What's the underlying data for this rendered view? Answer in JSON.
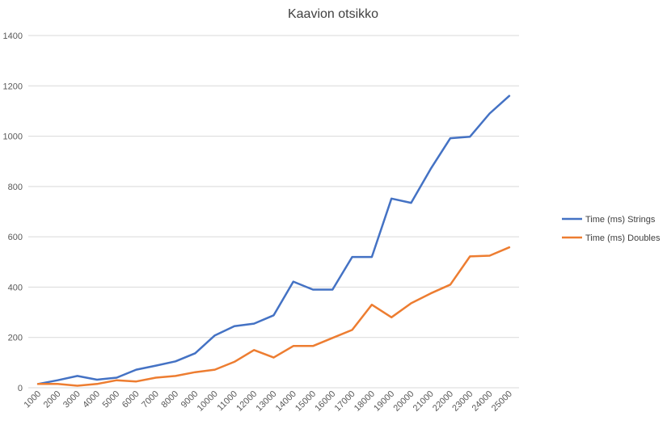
{
  "chart_data": {
    "type": "line",
    "title": "Kaavion otsikko",
    "xlabel": "",
    "ylabel": "",
    "categories": [
      "1000",
      "2000",
      "3000",
      "4000",
      "5000",
      "6000",
      "7000",
      "8000",
      "9000",
      "10000",
      "11000",
      "12000",
      "13000",
      "14000",
      "15000",
      "16000",
      "17000",
      "18000",
      "19000",
      "20000",
      "21000",
      "22000",
      "23000",
      "24000",
      "25000"
    ],
    "ylim": [
      0,
      1400
    ],
    "yticks": [
      0,
      200,
      400,
      600,
      800,
      1000,
      1200,
      1400
    ],
    "grid": true,
    "legend_position": "right",
    "series": [
      {
        "name": "Time (ms) Strings",
        "color": "#4472c4",
        "values": [
          15,
          30,
          47,
          32,
          40,
          72,
          88,
          105,
          137,
          208,
          245,
          255,
          288,
          422,
          390,
          390,
          520,
          520,
          752,
          735,
          870,
          992,
          998,
          1090,
          1160
        ]
      },
      {
        "name": "Time (ms) Doubles",
        "color": "#ed7d31",
        "values": [
          15,
          15,
          8,
          15,
          30,
          25,
          40,
          47,
          62,
          72,
          103,
          150,
          120,
          166,
          166,
          198,
          230,
          330,
          280,
          336,
          375,
          410,
          522,
          525,
          558
        ]
      }
    ]
  }
}
